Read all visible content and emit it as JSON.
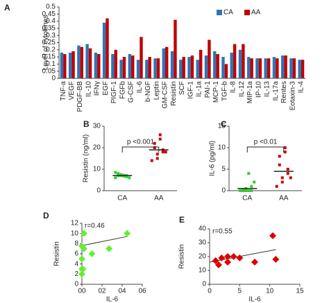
{
  "chart_data": [
    {
      "type": "bar",
      "label": "A",
      "ylabel": "Level of cytokines",
      "categories": [
        "TNF-a",
        "VEGF",
        "PDGF-BB",
        "IL-10",
        "IFNγ",
        "EGF",
        "PIGF-1",
        "FGFb",
        "G-CSF",
        "IL-6",
        "b-NGF",
        "Leptin",
        "GM-CSF",
        "Resistin",
        "SCF",
        "IGF-1",
        "IL-1a",
        "PAI-1",
        "MCP-1",
        "TGF-b",
        "IL-8",
        "IL-12",
        "MIP-1a",
        "IP-10",
        "IL-13",
        "IL-17a",
        "Rentes",
        "Eotaxin-3",
        "IL-4"
      ],
      "series": [
        {
          "name": "CA",
          "color": "#2e75b6",
          "values": [
            0.18,
            0.18,
            0.23,
            0.24,
            0.18,
            0.39,
            0.17,
            0.13,
            0.17,
            0.13,
            0.13,
            0.14,
            0.21,
            0.19,
            0.13,
            0.15,
            0.13,
            0.16,
            0.19,
            0.15,
            0.18,
            0.2,
            0.15,
            0.14,
            0.14,
            0.15,
            0.16,
            0.14,
            0.13
          ]
        },
        {
          "name": "AA",
          "color": "#c00000",
          "values": [
            0.17,
            0.19,
            0.22,
            0.21,
            0.17,
            0.42,
            0.2,
            0.15,
            0.16,
            0.29,
            0.15,
            0.14,
            0.22,
            0.41,
            0.15,
            0.16,
            0.2,
            0.27,
            0.17,
            0.1,
            0.24,
            0.24,
            0.14,
            0.14,
            0.14,
            0.14,
            0.16,
            0.14,
            0.13
          ]
        }
      ],
      "ylim": [
        0,
        0.5
      ],
      "yticks": [
        0,
        0.05,
        0.1,
        0.15,
        0.2,
        0.25,
        0.3,
        0.35,
        0.4,
        0.45,
        0.5
      ],
      "legend": "top-right"
    },
    {
      "type": "dotplot",
      "label": "B",
      "ylabel": "Resistin (ng/ml)",
      "categories": [
        "CA",
        "AA"
      ],
      "colors": [
        "#33cc33",
        "#cc0000"
      ],
      "points": [
        [
          6,
          7,
          7.5,
          6.5,
          7,
          8,
          7,
          6.8,
          7.2,
          6,
          8.5
        ],
        [
          14,
          15,
          17,
          18,
          19,
          20,
          22,
          24,
          26,
          18
        ]
      ],
      "means": [
        7,
        19
      ],
      "ylim": [
        0,
        30
      ],
      "yticks": [
        0,
        10,
        20,
        30
      ],
      "annotation": "p <0.001"
    },
    {
      "type": "dotplot",
      "label": "C",
      "ylabel": "IL-6 (pg/ml)",
      "categories": [
        "CA",
        "AA"
      ],
      "colors": [
        "#33cc33",
        "#cc0000"
      ],
      "points": [
        [
          0,
          0,
          0.5,
          0,
          1,
          0.2,
          0,
          0,
          4,
          2
        ],
        [
          1,
          2,
          3,
          4,
          5,
          6,
          8,
          10,
          9,
          3
        ]
      ],
      "means": [
        0.5,
        4.5
      ],
      "ylim": [
        0,
        15
      ],
      "yticks": [
        0,
        5,
        10,
        15
      ],
      "annotation": "p <0.01"
    },
    {
      "type": "scatter",
      "label": "D",
      "xlabel": "IL-6",
      "ylabel": "Resistin",
      "color": "#66ee33",
      "x": [
        0,
        0,
        0,
        0.02,
        0.02,
        0.1,
        0.27,
        0.45,
        0,
        0.01
      ],
      "y": [
        2,
        3,
        5,
        7,
        10,
        6,
        7,
        10,
        7.5,
        3
      ],
      "trendline": {
        "x": [
          0,
          0.45
        ],
        "y": [
          7.6,
          9.4
        ]
      },
      "xlim": [
        0,
        0.6
      ],
      "ylim": [
        0,
        12
      ],
      "xticks": [
        {
          "value": 0,
          "label": "00"
        },
        {
          "value": 0.2,
          "label": "02"
        },
        {
          "value": 0.4,
          "label": "04"
        },
        {
          "value": 0.6,
          "label": "06"
        }
      ],
      "yticks": [
        0,
        2,
        4,
        6,
        8,
        10,
        12
      ],
      "annotation": "r=0.46"
    },
    {
      "type": "scatter",
      "label": "E",
      "xlabel": "IL-6",
      "ylabel": "Resistin",
      "color": "#dd0000",
      "x": [
        1,
        1.5,
        2,
        3,
        3,
        4,
        5,
        7.5,
        10.5,
        11
      ],
      "y": [
        17,
        14,
        19,
        20,
        16,
        20,
        19,
        16,
        35,
        18
      ],
      "trendline": {
        "x": [
          0,
          11
        ],
        "y": [
          16,
          25
        ]
      },
      "xlim": [
        0,
        15
      ],
      "ylim": [
        0,
        40
      ],
      "xticks": [
        0,
        5,
        10,
        15
      ],
      "yticks": [
        0,
        10,
        20,
        30,
        40
      ],
      "annotation": "r=0.55"
    }
  ]
}
